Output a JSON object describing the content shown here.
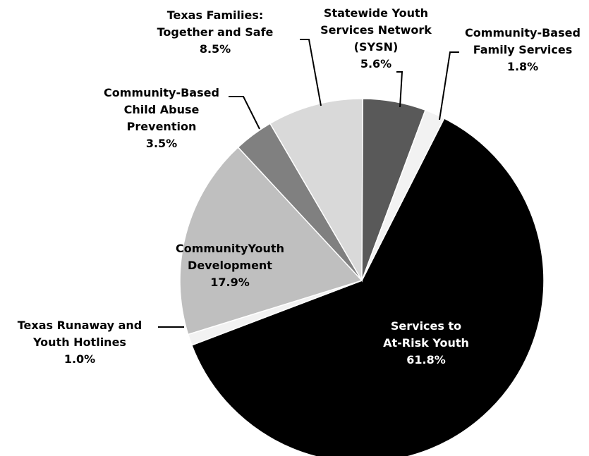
{
  "chart_data": {
    "type": "pie",
    "title": "",
    "slices": [
      {
        "label_lines": [
          "Services to",
          "At-Risk Youth"
        ],
        "value_label": "61.8%",
        "value": 61.8,
        "color": "#000000"
      },
      {
        "label_lines": [
          "Texas Runaway and",
          "Youth Hotlines"
        ],
        "value_label": "1.0%",
        "value": 1.0,
        "color": "#f2f2f2"
      },
      {
        "label_lines": [
          "CommunityYouth",
          "Development"
        ],
        "value_label": "17.9%",
        "value": 17.9,
        "color": "#bfbfbf"
      },
      {
        "label_lines": [
          "Community-Based",
          "Child Abuse",
          "Prevention"
        ],
        "value_label": "3.5%",
        "value": 3.5,
        "color": "#808080"
      },
      {
        "label_lines": [
          "Texas Families:",
          "Together and Safe"
        ],
        "value_label": "8.5%",
        "value": 8.5,
        "color": "#d9d9d9"
      },
      {
        "label_lines": [
          "Statewide Youth",
          "Services Network",
          "(SYSN)"
        ],
        "value_label": "5.6%",
        "value": 5.6,
        "color": "#595959"
      },
      {
        "label_lines": [
          "Community-Based",
          "Family Services"
        ],
        "value_label": "1.8%",
        "value": 1.8,
        "color": "#f2f2f2"
      }
    ]
  }
}
